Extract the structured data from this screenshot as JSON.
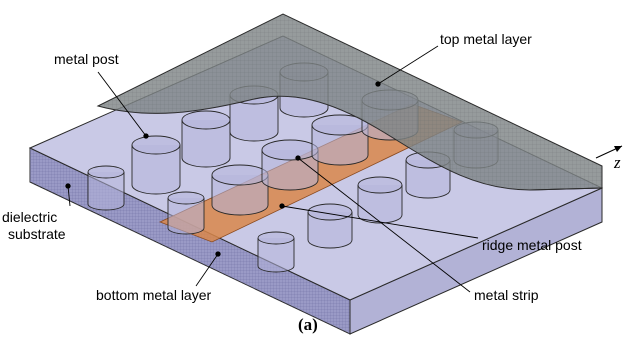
{
  "labels": {
    "metal_post": "metal post",
    "top_metal_layer": "top metal layer",
    "dielectric_substrate_line1": "dielectric",
    "dielectric_substrate_line2": "substrate",
    "bottom_metal_layer": "bottom metal layer",
    "ridge_metal_post": "ridge metal post",
    "metal_strip": "metal strip",
    "axis_z": "z"
  },
  "caption": "(a)",
  "colors": {
    "substrate_top": "#c9c9e6",
    "substrate_front": "#9a9ac6",
    "substrate_side": "#b2b2d6",
    "top_metal": "#7f8586",
    "metal_strip": "#d9874a",
    "post_fill": "#b4b4da",
    "outline": "#2a2a2a"
  }
}
